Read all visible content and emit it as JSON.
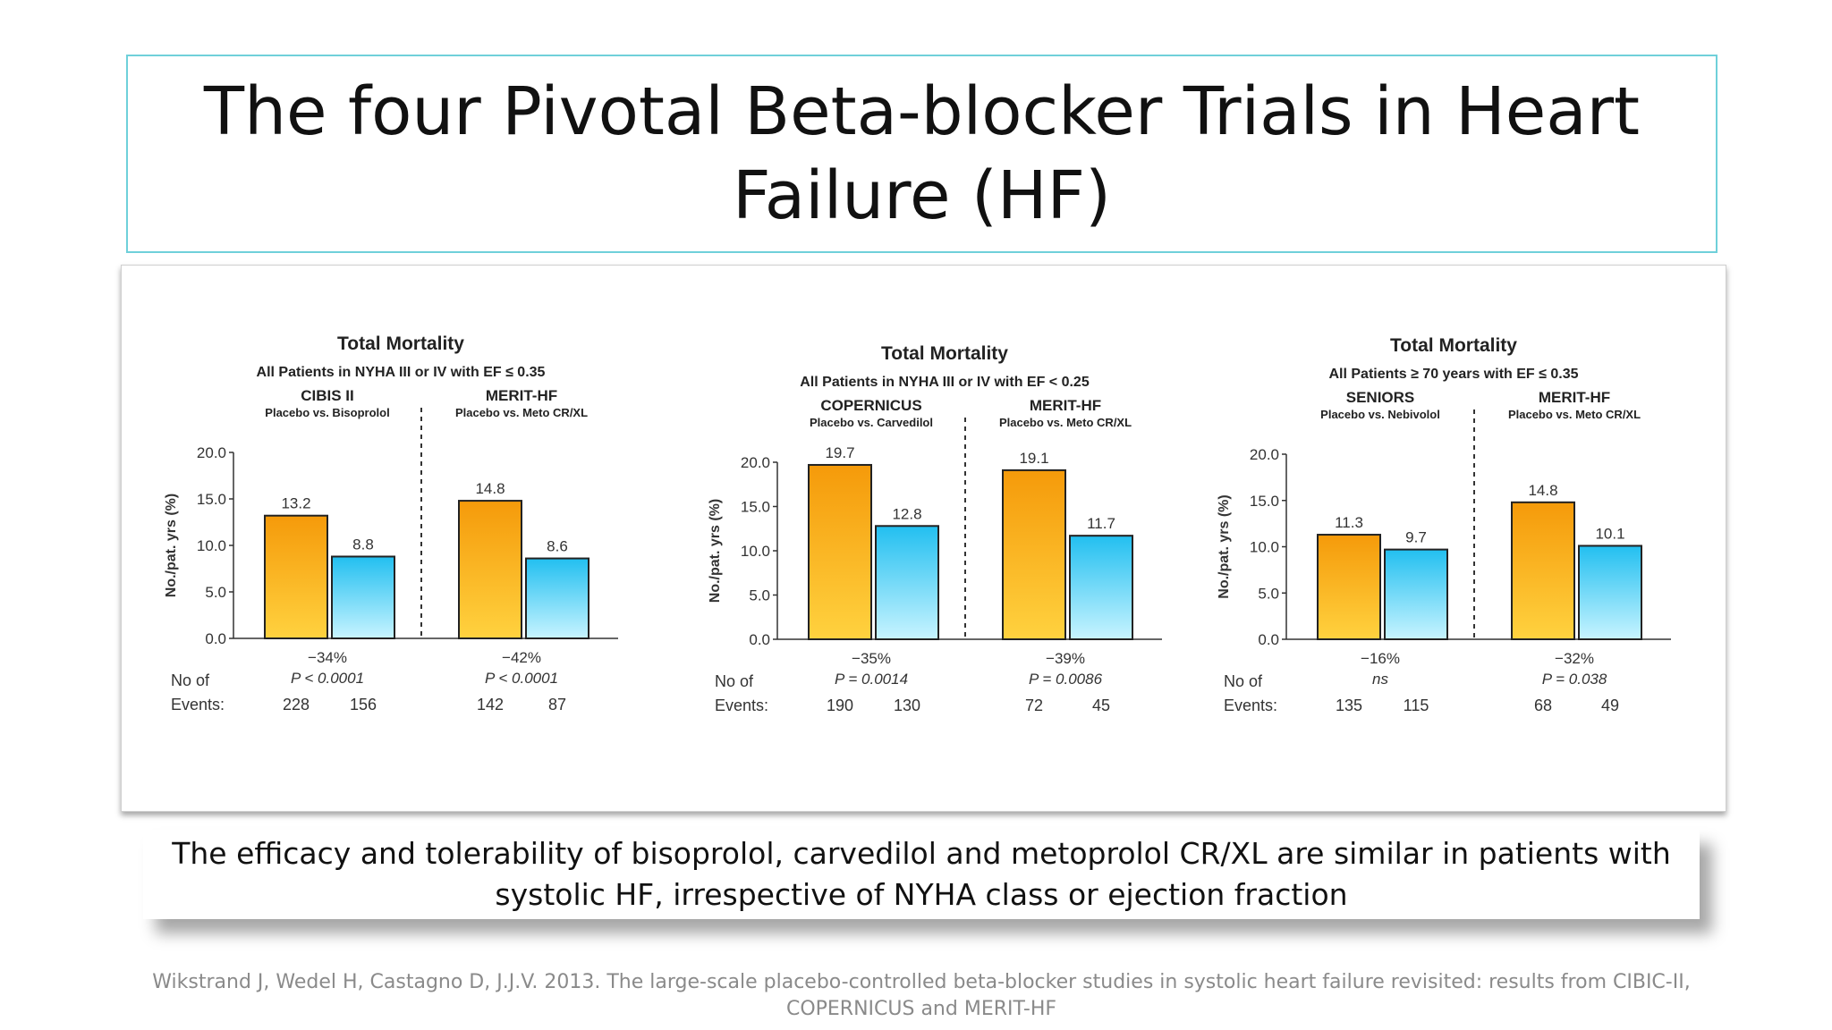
{
  "slide": {
    "title": "The four Pivotal Beta-blocker Trials in Heart Failure (HF)",
    "caption": "The efficacy and tolerability of bisoprolol, carvedilol and metoprolol CR/XL are similar in patients with systolic HF, irrespective of NYHA class or ejection fraction",
    "citation": "Wikstrand J, Wedel H, Castagno D, J.J.V. 2013. The large-scale placebo-controlled beta-blocker studies in systolic heart failure revisited: results from CIBIC-II, COPERNICUS and MERIT-HF"
  },
  "colors": {
    "placebo": "#f5a00f",
    "treatment": "#2ec7f0",
    "border": "#6fd0da"
  },
  "chart_data": [
    {
      "type": "bar",
      "title": "Total Mortality",
      "subtitle": "All Patients in NYHA III or IV with EF ≤ 0.35",
      "ylabel": "No./pat. yrs (%)",
      "ylim": [
        0,
        20
      ],
      "yticks": [
        "0.0",
        "5.0",
        "10.0",
        "15.0",
        "20.0"
      ],
      "events_label_1": "No of",
      "events_label_2": "Events:",
      "groups": [
        {
          "name": "CIBIS II",
          "comparison": "Placebo vs. Bisoprolol",
          "values": [
            13.2,
            8.8
          ],
          "value_labels": [
            "13.2",
            "8.8"
          ],
          "change": "−34%",
          "p": "P < 0.0001",
          "events": [
            "228",
            "156"
          ]
        },
        {
          "name": "MERIT-HF",
          "comparison": "Placebo vs. Meto CR/XL",
          "values": [
            14.8,
            8.6
          ],
          "value_labels": [
            "14.8",
            "8.6"
          ],
          "change": "−42%",
          "p": "P < 0.0001",
          "events": [
            "142",
            "87"
          ]
        }
      ]
    },
    {
      "type": "bar",
      "title": "Total Mortality",
      "subtitle": "All Patients in NYHA III or IV with EF < 0.25",
      "ylabel": "No./pat. yrs (%)",
      "ylim": [
        0,
        20
      ],
      "yticks": [
        "0.0",
        "5.0",
        "10.0",
        "15.0",
        "20.0"
      ],
      "events_label_1": "No of",
      "events_label_2": "Events:",
      "groups": [
        {
          "name": "COPERNICUS",
          "comparison": "Placebo vs. Carvedilol",
          "values": [
            19.7,
            12.8
          ],
          "value_labels": [
            "19.7",
            "12.8"
          ],
          "change": "−35%",
          "p": "P = 0.0014",
          "events": [
            "190",
            "130"
          ]
        },
        {
          "name": "MERIT-HF",
          "comparison": "Placebo vs. Meto CR/XL",
          "values": [
            19.1,
            11.7
          ],
          "value_labels": [
            "19.1",
            "11.7"
          ],
          "change": "−39%",
          "p": "P = 0.0086",
          "events": [
            "72",
            "45"
          ]
        }
      ]
    },
    {
      "type": "bar",
      "title": "Total Mortality",
      "subtitle": "All Patients ≥ 70 years with EF ≤ 0.35",
      "ylabel": "No./pat. yrs (%)",
      "ylim": [
        0,
        20
      ],
      "yticks": [
        "0.0",
        "5.0",
        "10.0",
        "15.0",
        "20.0"
      ],
      "events_label_1": "No of",
      "events_label_2": "Events:",
      "groups": [
        {
          "name": "SENIORS",
          "comparison": "Placebo vs. Nebivolol",
          "values": [
            11.3,
            9.7
          ],
          "value_labels": [
            "11.3",
            "9.7"
          ],
          "change": "−16%",
          "p": "ns",
          "events": [
            "135",
            "115"
          ]
        },
        {
          "name": "MERIT-HF",
          "comparison": "Placebo vs. Meto CR/XL",
          "values": [
            14.8,
            10.1
          ],
          "value_labels": [
            "14.8",
            "10.1"
          ],
          "change": "−32%",
          "p": "P = 0.038",
          "events": [
            "68",
            "49"
          ]
        }
      ]
    }
  ]
}
